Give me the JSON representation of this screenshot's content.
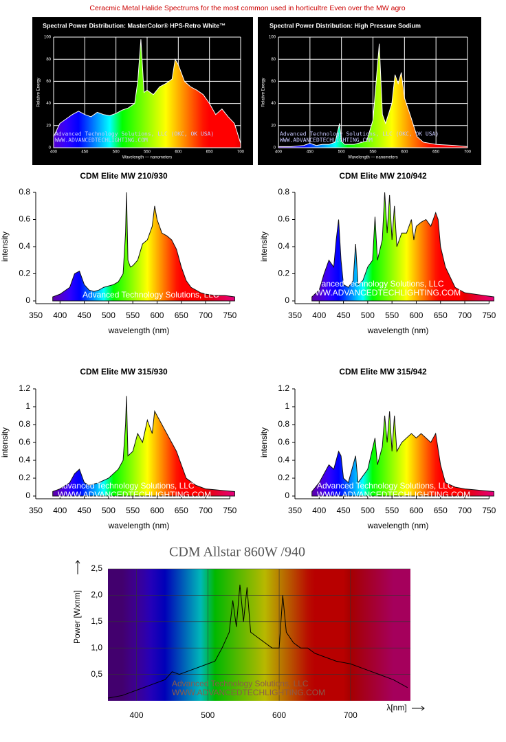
{
  "page_title": "Ceracmic Metal Halide Spectrums for the most common used in horticultre Even over the MW agro",
  "chart_data": [
    {
      "type": "area",
      "title": "Spectral Power Distribution: MasterColor® HPS-Retro White™",
      "xlabel": "Wavelength — nanometers",
      "ylabel": "Relative Energy",
      "background": "#000000",
      "grid": true,
      "line_color": "#ffffff",
      "annotations": [
        "Advanced Technology Solutions, LLC (OKC, OK USA)",
        "WWW.ADVANCEDTECHLIGHTING.COM"
      ],
      "xlim": [
        400,
        700
      ],
      "xticks": [
        400,
        450,
        500,
        550,
        600,
        650,
        700
      ],
      "ylim": [
        0,
        100
      ],
      "yticks": [
        0,
        20,
        40,
        60,
        80,
        100
      ],
      "x": [
        400,
        410,
        420,
        430,
        440,
        450,
        460,
        470,
        480,
        490,
        500,
        510,
        520,
        530,
        535,
        540,
        545,
        550,
        560,
        570,
        580,
        590,
        595,
        600,
        610,
        620,
        630,
        640,
        650,
        660,
        670,
        680,
        690,
        700
      ],
      "values": [
        10,
        22,
        26,
        30,
        33,
        30,
        28,
        32,
        30,
        29,
        31,
        34,
        36,
        40,
        60,
        98,
        50,
        52,
        48,
        55,
        58,
        62,
        80,
        75,
        60,
        55,
        52,
        48,
        40,
        30,
        35,
        28,
        22,
        4
      ]
    },
    {
      "type": "area",
      "title": "Spectral Power Distribution: High Pressure Sodium",
      "xlabel": "Wavelength — nanometers",
      "ylabel": "Relative Energy",
      "background": "#000000",
      "grid": true,
      "line_color": "#ffffff",
      "annotations": [
        "Advanced Technology Solutions, LLC (OKC, OK USA)",
        "WWW.ADVANCEDTECHLIGHTING.COM"
      ],
      "xlim": [
        400,
        700
      ],
      "xticks": [
        400,
        450,
        500,
        550,
        600,
        650,
        700
      ],
      "ylim": [
        0,
        100
      ],
      "yticks": [
        0,
        20,
        40,
        60,
        80,
        100
      ],
      "x": [
        400,
        420,
        440,
        450,
        460,
        470,
        480,
        490,
        497,
        500,
        505,
        520,
        540,
        550,
        560,
        565,
        570,
        580,
        585,
        590,
        595,
        600,
        610,
        620,
        630,
        650,
        680,
        700
      ],
      "values": [
        1,
        1,
        2,
        4,
        2,
        3,
        3,
        5,
        22,
        6,
        3,
        3,
        6,
        25,
        94,
        30,
        22,
        40,
        66,
        58,
        68,
        45,
        28,
        10,
        5,
        3,
        2,
        1
      ]
    },
    {
      "type": "area",
      "title": "CDM Elite MW 210/930",
      "xlabel": "wavelength (nm)",
      "ylabel": "intensity",
      "grid": false,
      "line_color": "#111111",
      "annotations": [
        "Advanced Technology Solutions, LLC"
      ],
      "xlim": [
        350,
        775
      ],
      "xticks": [
        350,
        400,
        450,
        500,
        550,
        600,
        650,
        700,
        750
      ],
      "ylim": [
        0,
        0.8
      ],
      "yticks": [
        0,
        0.2,
        0.4,
        0.6,
        0.8
      ],
      "x": [
        385,
        400,
        420,
        430,
        440,
        450,
        460,
        470,
        480,
        490,
        500,
        510,
        520,
        530,
        535,
        537,
        540,
        545,
        550,
        560,
        570,
        580,
        590,
        595,
        600,
        605,
        610,
        620,
        630,
        640,
        650,
        660,
        670,
        680,
        690,
        700,
        720,
        740,
        760
      ],
      "values": [
        0.03,
        0.05,
        0.1,
        0.2,
        0.22,
        0.12,
        0.08,
        0.07,
        0.08,
        0.1,
        0.11,
        0.12,
        0.14,
        0.2,
        0.5,
        0.8,
        0.3,
        0.25,
        0.26,
        0.3,
        0.42,
        0.45,
        0.55,
        0.7,
        0.6,
        0.55,
        0.5,
        0.48,
        0.45,
        0.38,
        0.25,
        0.15,
        0.1,
        0.08,
        0.06,
        0.05,
        0.04,
        0.04,
        0.03
      ]
    },
    {
      "type": "area",
      "title": "CDM Elite MW 210/942",
      "xlabel": "wavelength (nm)",
      "ylabel": "intensity",
      "grid": false,
      "line_color": "#111111",
      "annotations": [
        "Advanced Technology Solutions, LLC",
        "WWW.ADVANCEDTECHLIGHTING.COM"
      ],
      "xlim": [
        350,
        775
      ],
      "xticks": [
        350,
        400,
        450,
        500,
        550,
        600,
        650,
        700,
        750
      ],
      "ylim": [
        0,
        0.8
      ],
      "yticks": [
        0,
        0.2,
        0.4,
        0.6,
        0.8
      ],
      "x": [
        385,
        400,
        410,
        420,
        430,
        435,
        440,
        445,
        450,
        460,
        470,
        475,
        480,
        490,
        500,
        510,
        515,
        520,
        530,
        535,
        540,
        545,
        550,
        555,
        560,
        570,
        580,
        590,
        595,
        600,
        610,
        620,
        630,
        640,
        645,
        650,
        660,
        680,
        700,
        720,
        740,
        760
      ],
      "values": [
        0.03,
        0.08,
        0.2,
        0.3,
        0.25,
        0.45,
        0.6,
        0.3,
        0.12,
        0.1,
        0.15,
        0.42,
        0.12,
        0.15,
        0.25,
        0.3,
        0.62,
        0.3,
        0.45,
        0.8,
        0.5,
        0.78,
        0.45,
        0.7,
        0.4,
        0.5,
        0.5,
        0.6,
        0.45,
        0.55,
        0.58,
        0.6,
        0.55,
        0.65,
        0.6,
        0.4,
        0.25,
        0.1,
        0.06,
        0.05,
        0.04,
        0.03
      ]
    },
    {
      "type": "area",
      "title": "CDM Elite MW 315/930",
      "xlabel": "wavelength (nm)",
      "ylabel": "intensity",
      "grid": false,
      "line_color": "#111111",
      "annotations": [
        "Advanced Technology Solutions, LLC",
        "WWW.ADVANCEDTECHLIGHTING.COM"
      ],
      "xlim": [
        350,
        775
      ],
      "xticks": [
        350,
        400,
        450,
        500,
        550,
        600,
        650,
        700,
        750
      ],
      "ylim": [
        0,
        1.2
      ],
      "yticks": [
        0,
        0.2,
        0.4,
        0.6,
        0.8,
        1,
        1.2
      ],
      "x": [
        385,
        400,
        420,
        430,
        440,
        450,
        460,
        480,
        500,
        520,
        530,
        535,
        537,
        540,
        550,
        560,
        570,
        580,
        590,
        595,
        600,
        610,
        620,
        630,
        640,
        650,
        660,
        680,
        700,
        720,
        740,
        760
      ],
      "values": [
        0.05,
        0.08,
        0.15,
        0.25,
        0.3,
        0.15,
        0.12,
        0.15,
        0.2,
        0.3,
        0.4,
        0.8,
        1.12,
        0.45,
        0.5,
        0.7,
        0.6,
        0.85,
        0.7,
        0.95,
        0.9,
        0.8,
        0.7,
        0.6,
        0.5,
        0.35,
        0.2,
        0.12,
        0.08,
        0.07,
        0.06,
        0.05
      ]
    },
    {
      "type": "area",
      "title": "CDM Elite MW 315/942",
      "xlabel": "wavelength (nm)",
      "ylabel": "intensity",
      "grid": false,
      "line_color": "#111111",
      "annotations": [
        "Advanced Technology Solutions, LLC",
        "WWW.ADVANCEDTECHLIGHTING.COM"
      ],
      "xlim": [
        350,
        775
      ],
      "xticks": [
        350,
        400,
        450,
        500,
        550,
        600,
        650,
        700,
        750
      ],
      "ylim": [
        0,
        1.2
      ],
      "yticks": [
        0,
        0.2,
        0.4,
        0.6,
        0.8,
        1,
        1.2
      ],
      "x": [
        385,
        400,
        410,
        420,
        430,
        440,
        445,
        450,
        460,
        475,
        480,
        500,
        515,
        520,
        530,
        535,
        540,
        545,
        550,
        555,
        560,
        570,
        580,
        590,
        600,
        610,
        620,
        630,
        640,
        650,
        660,
        680,
        700,
        720,
        740,
        760
      ],
      "values": [
        0.05,
        0.15,
        0.25,
        0.35,
        0.3,
        0.5,
        0.45,
        0.2,
        0.15,
        0.45,
        0.15,
        0.3,
        0.65,
        0.35,
        0.55,
        0.9,
        0.6,
        0.95,
        0.5,
        0.9,
        0.5,
        0.6,
        0.65,
        0.7,
        0.65,
        0.7,
        0.65,
        0.6,
        0.7,
        0.35,
        0.15,
        0.1,
        0.08,
        0.07,
        0.06,
        0.05
      ]
    },
    {
      "type": "line",
      "title": "CDM Allstar 860W /940",
      "xlabel": "λ[nm]",
      "ylabel": "Power [Wxnm]",
      "grid": true,
      "line_color": "#000000",
      "annotations": [
        "Advanced Technology Solutions, LLC",
        "WWW.ADVANCEDTECHLIGHTING.COM"
      ],
      "xlim": [
        360,
        784
      ],
      "xticks": [
        400,
        500,
        600,
        700
      ],
      "ylim": [
        0,
        2.5
      ],
      "yticks": [
        {
          "value": 0.5,
          "label": "0,5"
        },
        {
          "value": 1,
          "label": "1,0"
        },
        {
          "value": 1.5,
          "label": "1,5"
        },
        {
          "value": 2,
          "label": "2,0"
        },
        {
          "value": 2.5,
          "label": "2,5"
        }
      ],
      "x": [
        360,
        380,
        400,
        420,
        440,
        450,
        460,
        480,
        500,
        510,
        520,
        530,
        535,
        540,
        545,
        550,
        555,
        560,
        570,
        580,
        590,
        600,
        605,
        610,
        620,
        630,
        640,
        650,
        660,
        680,
        700,
        720,
        740,
        760,
        780
      ],
      "values": [
        0.05,
        0.1,
        0.2,
        0.3,
        0.4,
        0.55,
        0.5,
        0.6,
        0.7,
        0.75,
        1.0,
        1.3,
        1.9,
        1.4,
        2.2,
        1.5,
        2.15,
        1.3,
        1.2,
        1.1,
        1.0,
        1.0,
        2.0,
        1.3,
        1.1,
        1.0,
        1.0,
        0.9,
        0.85,
        0.75,
        0.7,
        0.6,
        0.5,
        0.4,
        0.25
      ]
    }
  ]
}
